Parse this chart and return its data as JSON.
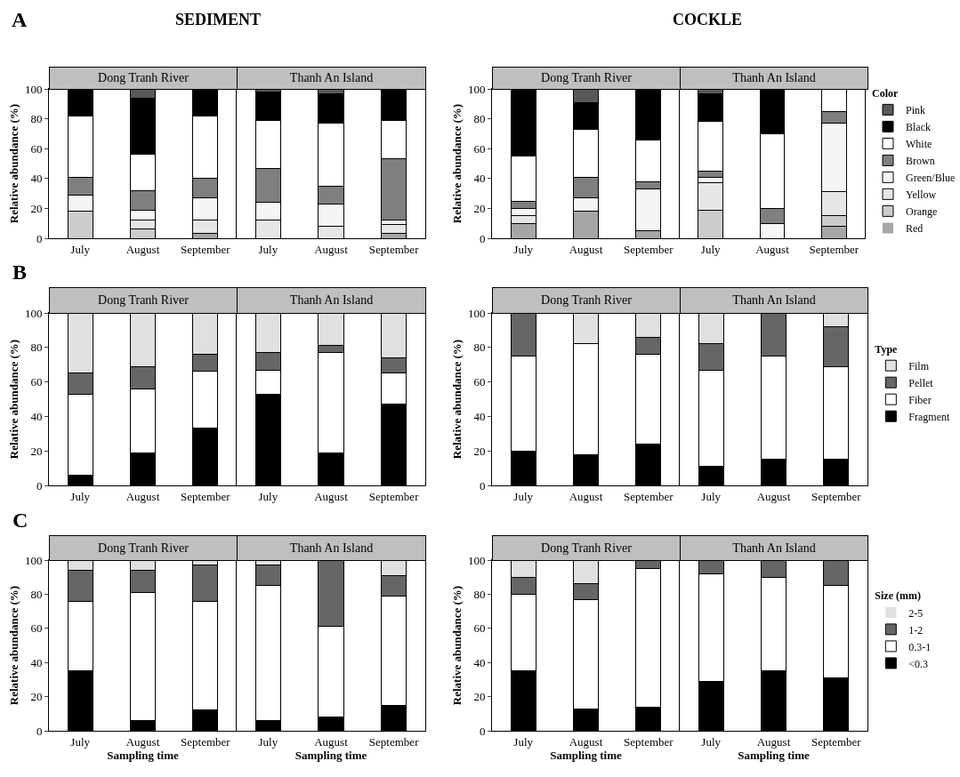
{
  "chart_data": [
    {
      "type": "bar",
      "stacked": true,
      "title": "Dong Tranh River",
      "annotations": [
        "A",
        "SEDIMENT"
      ],
      "ylabel": "Relative abundance (%)",
      "categories": [
        "July",
        "August",
        "September"
      ],
      "ylim": [
        0,
        100
      ],
      "yticks": [
        0,
        20,
        40,
        60,
        80,
        100
      ],
      "series": [
        {
          "color": "#a6a6a6",
          "values": [
            0,
            0,
            3
          ]
        },
        {
          "color": "#cccccc",
          "values": [
            18,
            6,
            0
          ]
        },
        {
          "color": "#e6e6e6",
          "values": [
            0,
            6,
            9
          ]
        },
        {
          "color": "#f5f5f5",
          "values": [
            11,
            7,
            15
          ]
        },
        {
          "color": "#7f7f7f",
          "values": [
            12,
            13,
            13
          ]
        },
        {
          "color": "#ffffff",
          "values": [
            41,
            24,
            42
          ]
        },
        {
          "color": "#000000",
          "values": [
            18,
            38,
            18
          ]
        },
        {
          "color": "#595959",
          "values": [
            0,
            6,
            0
          ]
        }
      ]
    },
    {
      "type": "bar",
      "stacked": true,
      "title": "Thanh An Island",
      "categories": [
        "July",
        "August",
        "September"
      ],
      "ylim": [
        0,
        100
      ],
      "yticks": [
        0,
        20,
        40,
        60,
        80,
        100
      ],
      "tick_labels": "x",
      "series": [
        {
          "color": "#a6a6a6",
          "values": [
            0,
            0,
            3
          ]
        },
        {
          "color": "#cccccc",
          "values": [
            0,
            0,
            0
          ]
        },
        {
          "color": "#e6e6e6",
          "values": [
            12,
            8,
            6
          ]
        },
        {
          "color": "#f5f5f5",
          "values": [
            12,
            15,
            3
          ]
        },
        {
          "color": "#7f7f7f",
          "values": [
            23,
            12,
            41
          ]
        },
        {
          "color": "#ffffff",
          "values": [
            32,
            42,
            26
          ]
        },
        {
          "color": "#000000",
          "values": [
            19,
            20,
            21
          ]
        },
        {
          "color": "#595959",
          "values": [
            2,
            3,
            0
          ]
        }
      ]
    },
    {
      "type": "bar",
      "stacked": true,
      "title": "Dong Tranh River",
      "ylabel": "Relative abundance (%)",
      "categories": [
        "July",
        "August",
        "September"
      ],
      "ylim": [
        0,
        100
      ],
      "yticks": [
        0,
        20,
        40,
        60,
        80,
        100
      ],
      "series": [
        {
          "color": "#a6a6a6",
          "values": [
            10,
            18,
            5
          ]
        },
        {
          "color": "#cccccc",
          "values": [
            0,
            0,
            0
          ]
        },
        {
          "color": "#e6e6e6",
          "values": [
            5,
            0,
            0
          ]
        },
        {
          "color": "#f5f5f5",
          "values": [
            5,
            9,
            28
          ]
        },
        {
          "color": "#7f7f7f",
          "values": [
            5,
            14,
            5
          ]
        },
        {
          "color": "#ffffff",
          "values": [
            30,
            32,
            28
          ]
        },
        {
          "color": "#000000",
          "values": [
            45,
            18,
            34
          ]
        },
        {
          "color": "#595959",
          "values": [
            0,
            9,
            0
          ]
        }
      ]
    },
    {
      "type": "bar",
      "stacked": true,
      "title": "Thanh An Island",
      "annotations": [
        "COCKLE"
      ],
      "legend": "right",
      "legend_title": "Color",
      "categories": [
        "July",
        "August",
        "September"
      ],
      "ylim": [
        0,
        100
      ],
      "yticks": [
        0,
        20,
        40,
        60,
        80,
        100
      ],
      "tick_labels": "x",
      "series": [
        {
          "name": "Red",
          "color": "#a6a6a6",
          "values": [
            0,
            0,
            8
          ]
        },
        {
          "name": "Orange",
          "color": "#cccccc",
          "values": [
            19,
            0,
            7
          ]
        },
        {
          "name": "Yellow",
          "color": "#e6e6e6",
          "values": [
            18,
            0,
            16
          ]
        },
        {
          "name": "Green/Blue",
          "color": "#f5f5f5",
          "values": [
            4,
            10,
            46
          ]
        },
        {
          "name": "Brown",
          "color": "#7f7f7f",
          "values": [
            4,
            10,
            8
          ]
        },
        {
          "name": "White",
          "color": "#ffffff",
          "values": [
            33,
            50,
            15
          ]
        },
        {
          "name": "Black",
          "color": "#000000",
          "values": [
            19,
            30,
            0
          ]
        },
        {
          "name": "Pink",
          "color": "#595959",
          "values": [
            3,
            0,
            0
          ]
        }
      ]
    },
    {
      "type": "bar",
      "stacked": true,
      "title": "Dong Tranh River",
      "annotations": [
        "B"
      ],
      "ylabel": "Relative abundance (%)",
      "categories": [
        "July",
        "August",
        "September"
      ],
      "ylim": [
        0,
        100
      ],
      "yticks": [
        0,
        20,
        40,
        60,
        80,
        100
      ],
      "series": [
        {
          "color": "#000000",
          "values": [
            6,
            19,
            33
          ]
        },
        {
          "color": "#ffffff",
          "values": [
            47,
            37,
            33
          ]
        },
        {
          "color": "#666666",
          "values": [
            12,
            13,
            10
          ]
        },
        {
          "color": "#e0e0e0",
          "values": [
            35,
            31,
            24
          ]
        }
      ]
    },
    {
      "type": "bar",
      "stacked": true,
      "title": "Thanh An Island",
      "categories": [
        "July",
        "August",
        "September"
      ],
      "ylim": [
        0,
        100
      ],
      "yticks": [
        0,
        20,
        40,
        60,
        80,
        100
      ],
      "tick_labels": "x",
      "series": [
        {
          "color": "#000000",
          "values": [
            53,
            19,
            47
          ]
        },
        {
          "color": "#ffffff",
          "values": [
            14,
            58,
            18
          ]
        },
        {
          "color": "#666666",
          "values": [
            10,
            4,
            9
          ]
        },
        {
          "color": "#e0e0e0",
          "values": [
            23,
            19,
            26
          ]
        }
      ]
    },
    {
      "type": "bar",
      "stacked": true,
      "title": "Dong Tranh River",
      "ylabel": "Relative abundance (%)",
      "categories": [
        "July",
        "August",
        "September"
      ],
      "ylim": [
        0,
        100
      ],
      "yticks": [
        0,
        20,
        40,
        60,
        80,
        100
      ],
      "series": [
        {
          "color": "#000000",
          "values": [
            20,
            18,
            24
          ]
        },
        {
          "color": "#ffffff",
          "values": [
            55,
            64,
            52
          ]
        },
        {
          "color": "#666666",
          "values": [
            25,
            0,
            10
          ]
        },
        {
          "color": "#e0e0e0",
          "values": [
            0,
            18,
            14
          ]
        }
      ]
    },
    {
      "type": "bar",
      "stacked": true,
      "title": "Thanh An Island",
      "legend": "right",
      "legend_title": "Type",
      "categories": [
        "July",
        "August",
        "September"
      ],
      "ylim": [
        0,
        100
      ],
      "yticks": [
        0,
        20,
        40,
        60,
        80,
        100
      ],
      "tick_labels": "x",
      "series": [
        {
          "name": "Fragment",
          "color": "#000000",
          "values": [
            11,
            15,
            15
          ]
        },
        {
          "name": "Fiber",
          "color": "#ffffff",
          "values": [
            56,
            60,
            54
          ]
        },
        {
          "name": "Pellet",
          "color": "#666666",
          "values": [
            15,
            25,
            23
          ]
        },
        {
          "name": "Film",
          "color": "#e0e0e0",
          "values": [
            18,
            0,
            8
          ]
        }
      ]
    },
    {
      "type": "bar",
      "stacked": true,
      "title": "Dong Tranh River",
      "annotations": [
        "C"
      ],
      "ylabel": "Relative abundance (%)",
      "xlabel": "Sampling time",
      "categories": [
        "July",
        "August",
        "September"
      ],
      "ylim": [
        0,
        100
      ],
      "yticks": [
        0,
        20,
        40,
        60,
        80,
        100
      ],
      "series": [
        {
          "color": "#000000",
          "values": [
            35,
            6,
            12
          ]
        },
        {
          "color": "#ffffff",
          "values": [
            41,
            75,
            64
          ]
        },
        {
          "color": "#666666",
          "values": [
            18,
            13,
            21
          ]
        },
        {
          "color": "#e0e0e0",
          "values": [
            6,
            6,
            3
          ]
        }
      ]
    },
    {
      "type": "bar",
      "stacked": true,
      "title": "Thanh An Island",
      "xlabel": "Sampling time",
      "categories": [
        "July",
        "August",
        "September"
      ],
      "ylim": [
        0,
        100
      ],
      "yticks": [
        0,
        20,
        40,
        60,
        80,
        100
      ],
      "tick_labels": "x",
      "series": [
        {
          "color": "#000000",
          "values": [
            6,
            8,
            15
          ]
        },
        {
          "color": "#ffffff",
          "values": [
            79,
            53,
            64
          ]
        },
        {
          "color": "#666666",
          "values": [
            12,
            39,
            12
          ]
        },
        {
          "color": "#e0e0e0",
          "values": [
            3,
            0,
            9
          ]
        }
      ]
    },
    {
      "type": "bar",
      "stacked": true,
      "title": "Dong Tranh River",
      "ylabel": "Relative abundance (%)",
      "xlabel": "Sampling time",
      "categories": [
        "July",
        "August",
        "September"
      ],
      "ylim": [
        0,
        100
      ],
      "yticks": [
        0,
        20,
        40,
        60,
        80,
        100
      ],
      "series": [
        {
          "color": "#000000",
          "values": [
            35,
            13,
            14
          ]
        },
        {
          "color": "#ffffff",
          "values": [
            45,
            64,
            81
          ]
        },
        {
          "color": "#666666",
          "values": [
            10,
            9,
            5
          ]
        },
        {
          "color": "#e0e0e0",
          "values": [
            10,
            14,
            0
          ]
        }
      ]
    },
    {
      "type": "bar",
      "stacked": true,
      "title": "Thanh An Island",
      "xlabel": "Sampling time",
      "legend": "right",
      "legend_title": "Size (mm)",
      "categories": [
        "July",
        "August",
        "September"
      ],
      "ylim": [
        0,
        100
      ],
      "yticks": [
        0,
        20,
        40,
        60,
        80,
        100
      ],
      "tick_labels": "x",
      "series": [
        {
          "name": "<0.3",
          "color": "#000000",
          "values": [
            29,
            35,
            31
          ]
        },
        {
          "name": "0.3-1",
          "color": "#ffffff",
          "values": [
            63,
            55,
            54
          ]
        },
        {
          "name": "1-2",
          "color": "#666666",
          "values": [
            8,
            10,
            15
          ]
        },
        {
          "name": "2-5",
          "color": "#e0e0e0",
          "values": [
            0,
            0,
            0
          ]
        }
      ]
    }
  ]
}
